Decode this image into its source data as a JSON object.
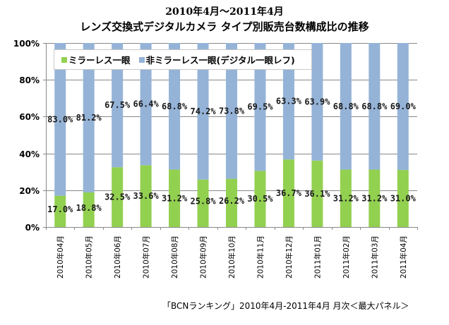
{
  "chart_data": {
    "type": "bar",
    "stacked": true,
    "percent_stacked": true,
    "title": "2010年4月～2011年4月",
    "subtitle": "レンズ交換式デジタルカメラ タイプ別販売台数構成比の推移",
    "xlabel": "",
    "ylabel": "",
    "ylim": [
      0,
      100
    ],
    "yticks": [
      "0%",
      "20%",
      "40%",
      "60%",
      "80%",
      "100%"
    ],
    "ytick_values": [
      0,
      20,
      40,
      60,
      80,
      100
    ],
    "grid": true,
    "legend_position": "top-left",
    "categories": [
      "2010年04月",
      "2010年05月",
      "2010年06月",
      "2010年07月",
      "2010年08月",
      "2010年09月",
      "2010年10月",
      "2010年11月",
      "2010年12月",
      "2011年01月",
      "2011年02月",
      "2011年03月",
      "2011年04月"
    ],
    "series": [
      {
        "name": "ミラーレス一眼",
        "color": "#92d050",
        "values": [
          17.0,
          18.8,
          32.5,
          33.6,
          31.2,
          25.8,
          26.2,
          30.5,
          36.7,
          36.1,
          31.2,
          31.2,
          31.0
        ],
        "labels": [
          "17.0%",
          "18.8%",
          "32.5%",
          "33.6%",
          "31.2%",
          "25.8%",
          "26.2%",
          "30.5%",
          "36.7%",
          "36.1%",
          "31.2%",
          "31.2%",
          "31.0%"
        ]
      },
      {
        "name": "非ミラーレス一眼(デジタル一眼レフ)",
        "color": "#95b3d7",
        "values": [
          83.0,
          81.2,
          67.5,
          66.4,
          68.8,
          74.2,
          73.8,
          69.5,
          63.3,
          63.9,
          68.8,
          68.8,
          69.0
        ],
        "labels": [
          "83.0%",
          "81.2%",
          "67.5%",
          "66.4%",
          "68.8%",
          "74.2%",
          "73.8%",
          "69.5%",
          "63.3%",
          "63.9%",
          "68.8%",
          "68.8%",
          "69.0%"
        ]
      }
    ],
    "source_note": "「BCNランキング」2010年4月-2011年4月 月次＜最大パネル＞"
  }
}
